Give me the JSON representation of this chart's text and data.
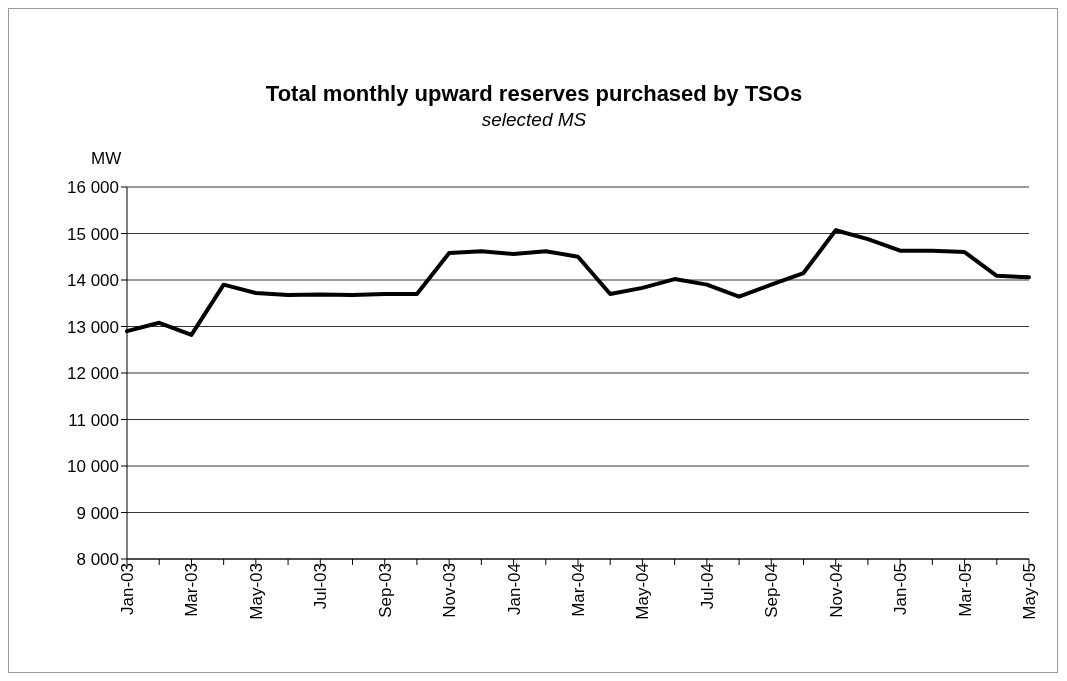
{
  "chart_data": {
    "type": "line",
    "title": "Total monthly upward reserves purchased by TSOs",
    "subtitle": "selected MS",
    "ylabel": "MW",
    "categories": [
      "Jan-03",
      null,
      "Mar-03",
      null,
      "May-03",
      null,
      "Jul-03",
      null,
      "Sep-03",
      null,
      "Nov-03",
      null,
      "Jan-04",
      null,
      "Mar-04",
      null,
      "May-04",
      null,
      "Jul-04",
      null,
      "Sep-04",
      null,
      "Nov-04",
      null,
      "Jan-05",
      null,
      "Mar-05",
      null,
      "May-05"
    ],
    "series": [
      {
        "color": "#000000",
        "values": [
          12900,
          13080,
          12820,
          13900,
          13720,
          13680,
          13690,
          13680,
          13700,
          13700,
          14580,
          14620,
          14560,
          14620,
          14500,
          13700,
          13830,
          14020,
          13900,
          13640,
          13900,
          14150,
          15070,
          14880,
          14630,
          14630,
          14600,
          14090,
          14060
        ]
      }
    ],
    "ylim": [
      8000,
      16000
    ],
    "yticks": [
      {
        "value": 8000,
        "label": "8 000"
      },
      {
        "value": 9000,
        "label": "9 000"
      },
      {
        "value": 10000,
        "label": "10 000"
      },
      {
        "value": 11000,
        "label": "11 000"
      },
      {
        "value": 12000,
        "label": "12 000"
      },
      {
        "value": 13000,
        "label": "13 000"
      },
      {
        "value": 14000,
        "label": "14 000"
      },
      {
        "value": 15000,
        "label": "15 000"
      },
      {
        "value": 16000,
        "label": "16 000"
      }
    ],
    "grid": "y",
    "legend": false,
    "marker": "none",
    "line_style": "solid"
  }
}
